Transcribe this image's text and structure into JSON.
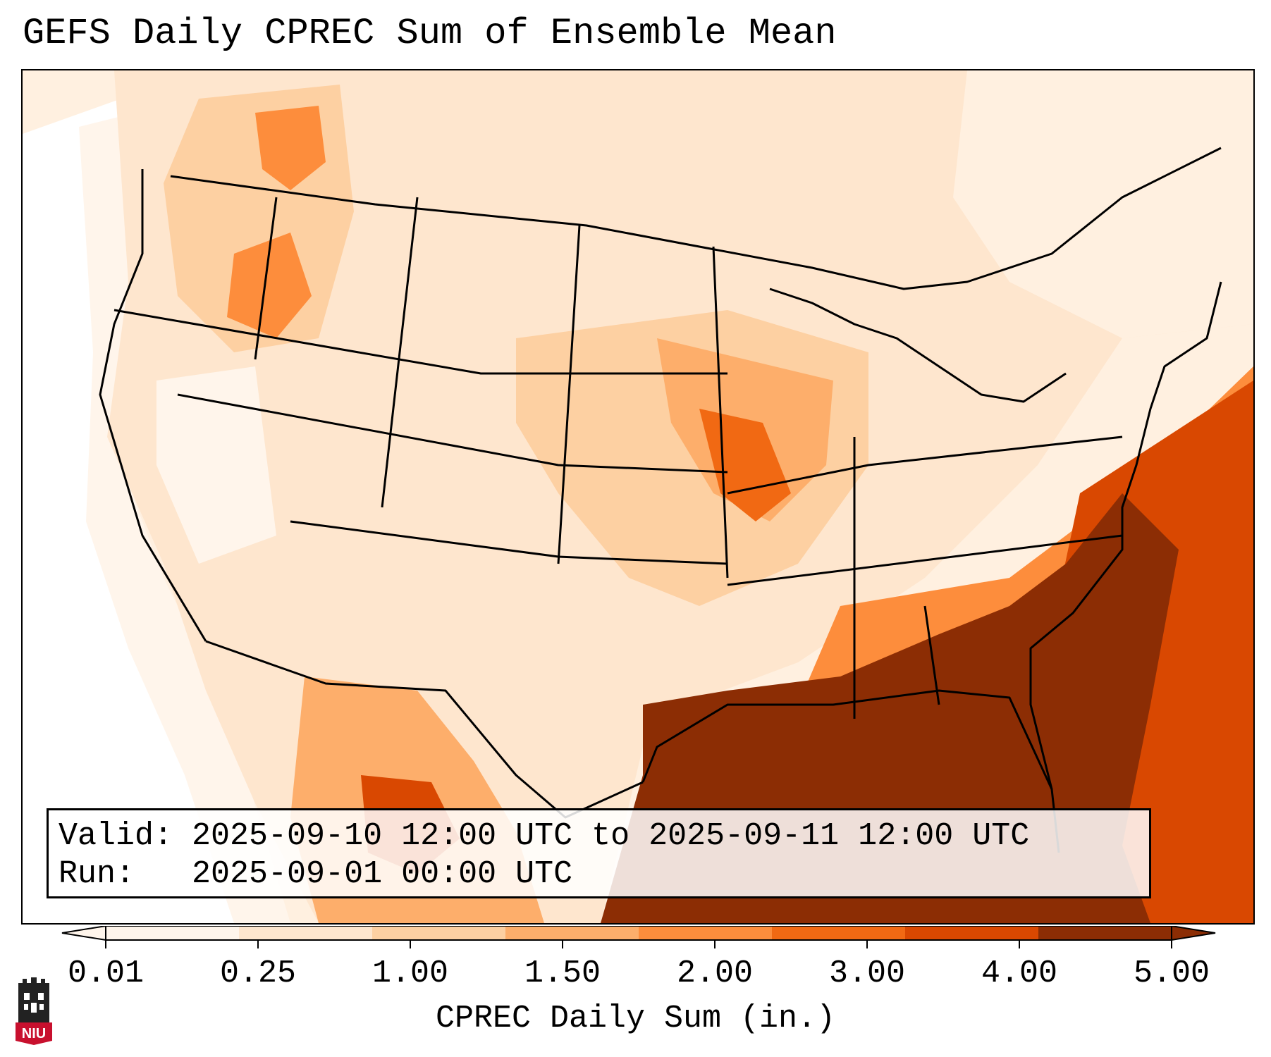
{
  "title": "GEFS Daily CPREC Sum of Ensemble Mean",
  "info": {
    "valid_line": "Valid: 2025-09-10 12:00 UTC to 2025-09-11 12:00 UTC",
    "run_line": "Run:   2025-09-01 00:00 UTC"
  },
  "colorbar": {
    "label": "CPREC Daily Sum (in.)",
    "ticks": [
      "0.01",
      "0.25",
      "1.00",
      "1.50",
      "2.00",
      "3.00",
      "4.00",
      "5.00"
    ],
    "colors": [
      "#fff5eb",
      "#fee6ce",
      "#fdd0a2",
      "#fdae6b",
      "#fd8d3c",
      "#f16913",
      "#d94801",
      "#8c2d04"
    ],
    "extend": "both"
  },
  "logo": {
    "text": "NIU",
    "colors": {
      "primary": "#c8102e",
      "dark": "#222222"
    }
  },
  "map_colors": {
    "land_base": "#fee6ce",
    "state_lines": "#000000"
  },
  "icons": [
    "niu-logo-icon",
    "castle-icon"
  ]
}
